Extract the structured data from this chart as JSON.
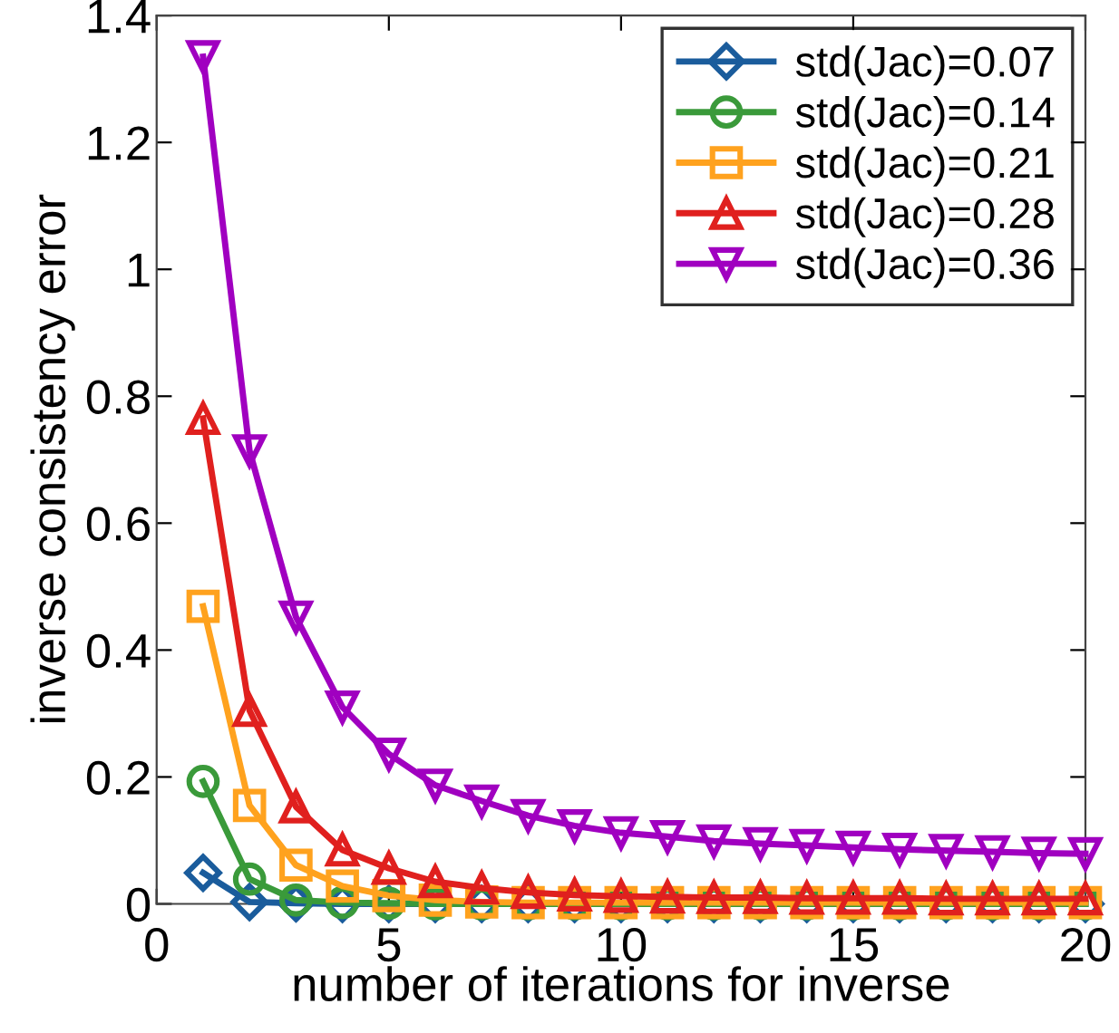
{
  "chart_data": {
    "type": "line",
    "xlabel": "number of iterations for inverse",
    "ylabel": "inverse consistency error",
    "x": [
      1,
      2,
      3,
      4,
      5,
      6,
      7,
      8,
      9,
      10,
      11,
      12,
      13,
      14,
      15,
      16,
      17,
      18,
      19,
      20
    ],
    "xlim": [
      0,
      20
    ],
    "xticks": [
      0,
      5,
      10,
      15,
      20
    ],
    "ylim": [
      0,
      1.4
    ],
    "yticks": [
      0,
      0.2,
      0.4,
      0.6,
      0.8,
      1,
      1.2,
      1.4
    ],
    "grid": false,
    "legend": "top right",
    "line_style": "solid",
    "series": [
      {
        "name": "std(Jac)=0.07",
        "color": "#1a5c9c",
        "marker": "diamond",
        "values": [
          0.049,
          0.003,
          0.001,
          0,
          0,
          0,
          0,
          0,
          0,
          0,
          0,
          0,
          0,
          0,
          0,
          0,
          0,
          0,
          0,
          0
        ]
      },
      {
        "name": "std(Jac)=0.14",
        "color": "#3a9a3a",
        "marker": "circle",
        "values": [
          0.193,
          0.039,
          0.006,
          0.002,
          0.001,
          0,
          0,
          0,
          0,
          0,
          0,
          0,
          0,
          0,
          0,
          0,
          0,
          0,
          0,
          0
        ]
      },
      {
        "name": "std(Jac)=0.21",
        "color": "#ffa21e",
        "marker": "square",
        "values": [
          0.469,
          0.155,
          0.061,
          0.028,
          0.013,
          0.006,
          0.003,
          0.002,
          0.002,
          0.002,
          0.002,
          0.002,
          0.002,
          0.002,
          0.002,
          0.002,
          0.002,
          0.002,
          0.002,
          0.002
        ]
      },
      {
        "name": "std(Jac)=0.28",
        "color": "#e0201e",
        "marker": "triangle",
        "values": [
          0.765,
          0.305,
          0.153,
          0.085,
          0.056,
          0.035,
          0.025,
          0.018,
          0.014,
          0.012,
          0.011,
          0.01,
          0.01,
          0.009,
          0.009,
          0.009,
          0.008,
          0.008,
          0.008,
          0.008
        ]
      },
      {
        "name": "std(Jac)=0.36",
        "color": "#a000c0",
        "marker": "triangle_down",
        "values": [
          1.335,
          0.714,
          0.452,
          0.31,
          0.236,
          0.187,
          0.162,
          0.139,
          0.123,
          0.112,
          0.106,
          0.099,
          0.095,
          0.092,
          0.089,
          0.086,
          0.084,
          0.082,
          0.08,
          0.079
        ]
      }
    ]
  }
}
